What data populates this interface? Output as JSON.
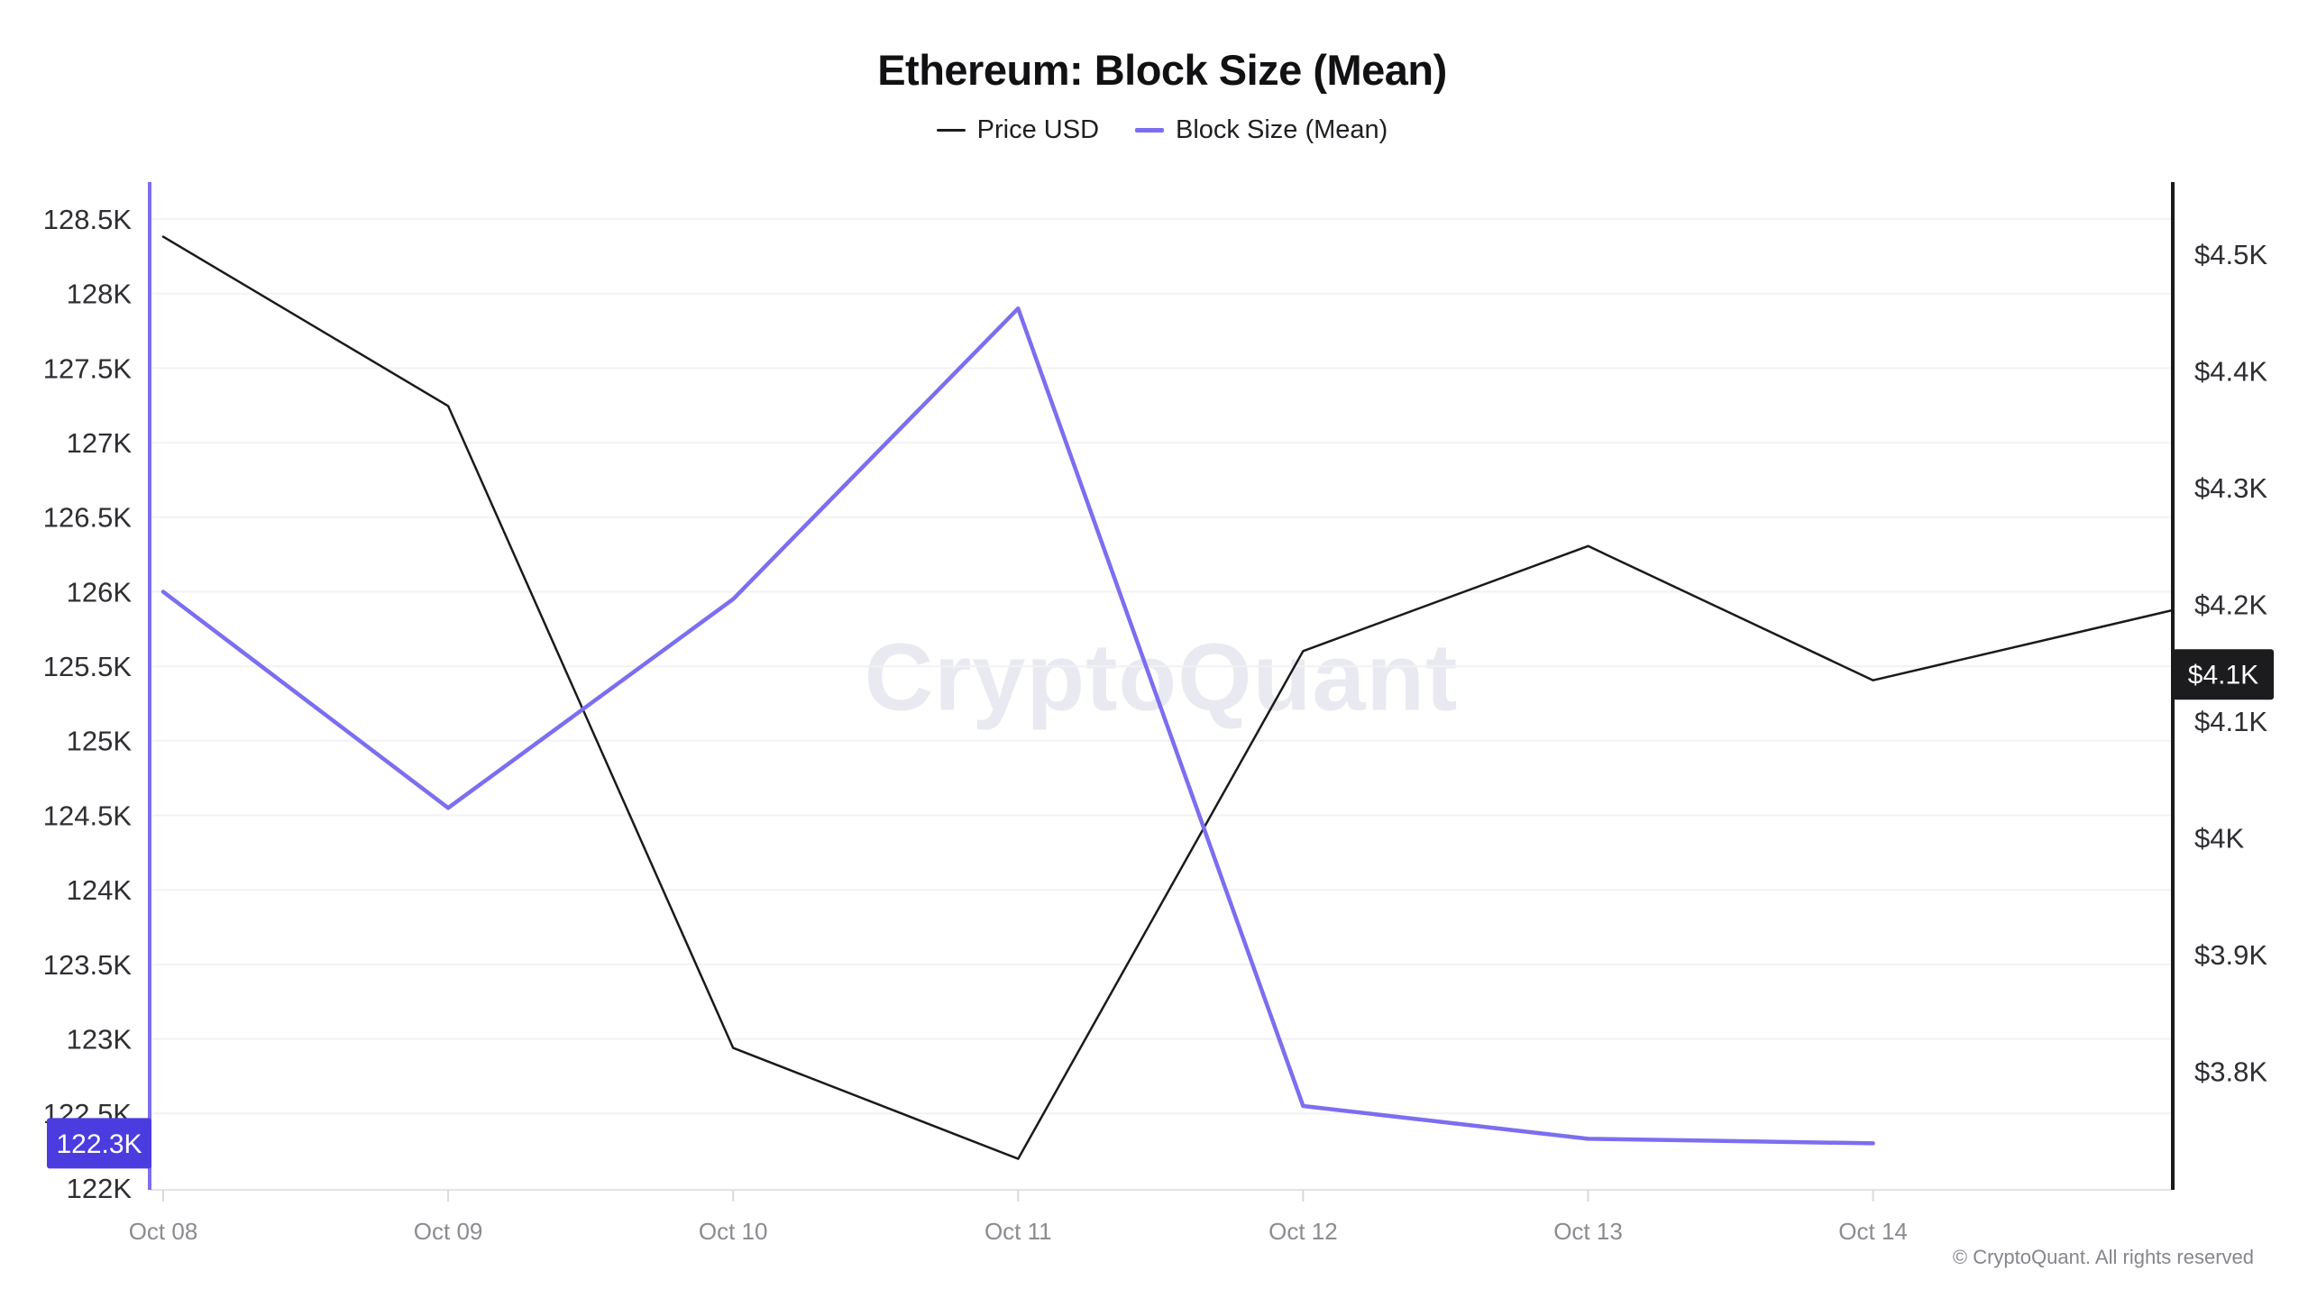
{
  "page": {
    "title": "Ethereum: Block Size (Mean)"
  },
  "legend": {
    "items": [
      {
        "label": "Price USD",
        "color": "#1a1a1a"
      },
      {
        "label": "Block Size (Mean)",
        "color": "#7b6ef0"
      }
    ]
  },
  "watermark": "CryptoQuant",
  "footer": {
    "copyright": "© CryptoQuant. All rights reserved"
  },
  "chart_data": {
    "type": "line",
    "title": "Ethereum: Block Size (Mean)",
    "legend_position": "top",
    "grid": "horizontal-left-axis-ticks",
    "x_tick_labels": [
      "Oct 08",
      "Oct 09",
      "Oct 10",
      "Oct 11",
      "Oct 12",
      "Oct 13",
      "Oct 14"
    ],
    "series": [
      {
        "name": "Price USD",
        "axis": "right",
        "color": "#1a1a1a",
        "stroke_width": 2.5,
        "x_day_offset": [
          0,
          1,
          2,
          3,
          4,
          5,
          6,
          7.05
        ],
        "values": [
          4515,
          4370,
          3820,
          3725,
          4160,
          4250,
          4135,
          4195
        ]
      },
      {
        "name": "Block Size (Mean)",
        "axis": "left",
        "color": "#7b6ef0",
        "stroke_width": 4.5,
        "x_day_offset": [
          0,
          1,
          2,
          3,
          4,
          5,
          6
        ],
        "values": [
          126000,
          124550,
          125950,
          127900,
          122550,
          122330,
          122300
        ]
      }
    ],
    "left_axis": {
      "series": "Block Size (Mean)",
      "axis_color": "#7b6ef0",
      "range": [
        122000,
        128500
      ],
      "tick_labels": [
        "128.5K",
        "128K",
        "127.5K",
        "127K",
        "126.5K",
        "126K",
        "125.5K",
        "125K",
        "124.5K",
        "124K",
        "123.5K",
        "123K",
        "122.5K",
        "122K"
      ],
      "tick_values": [
        128500,
        128000,
        127500,
        127000,
        126500,
        126000,
        125500,
        125000,
        124500,
        124000,
        123500,
        123000,
        122500,
        122000
      ],
      "badge": {
        "label": "122.3K",
        "value": 122300,
        "bg": "#4b3ce0",
        "text_color": "#ffffff"
      }
    },
    "right_axis": {
      "series": "Price USD",
      "axis_color": "#1a1a1a",
      "range": [
        3800,
        4500
      ],
      "tick_labels": [
        "$4.5K",
        "$4.4K",
        "$4.3K",
        "$4.2K",
        "$4.1K",
        "$4K",
        "$3.9K",
        "$3.8K"
      ],
      "tick_values": [
        4500,
        4400,
        4300,
        4200,
        4100,
        4000,
        3900,
        3800
      ],
      "badge": {
        "label": "$4.1K",
        "value": 4140,
        "bg": "#1c1c1e",
        "text_color": "#ffffff"
      }
    }
  }
}
